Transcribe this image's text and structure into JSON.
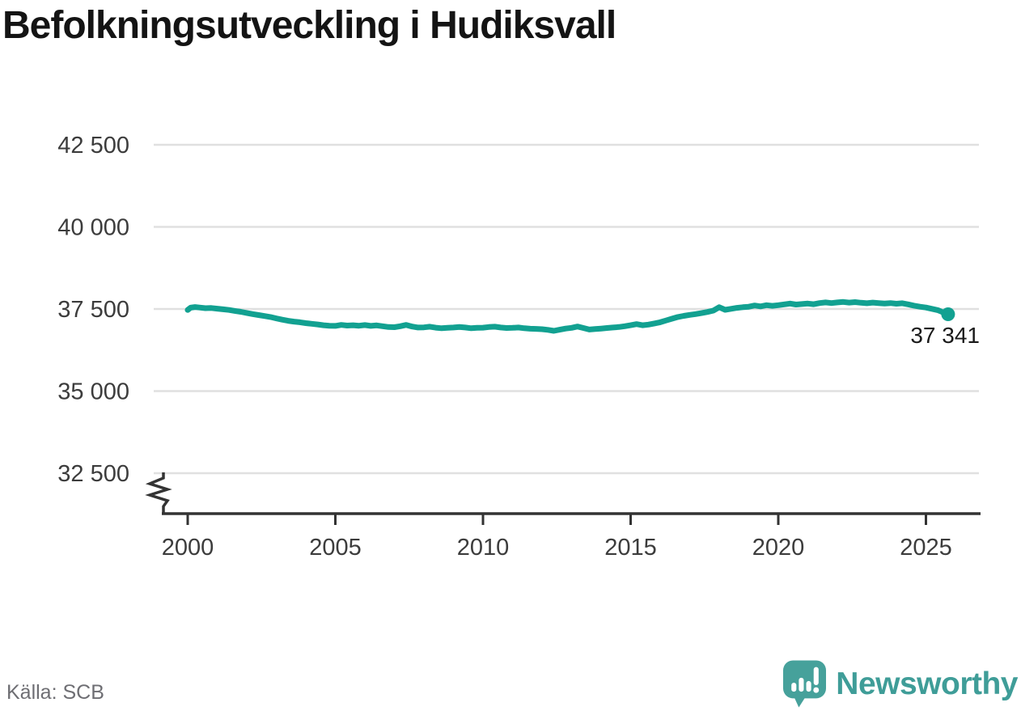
{
  "title": "Befolkningsutveckling i Hudiksvall",
  "source": "Källa: SCB",
  "branding": {
    "name": "Newsworthy"
  },
  "chart_data": {
    "type": "line",
    "title": "Befolkningsutveckling i Hudiksvall",
    "xlabel": "",
    "ylabel": "",
    "grid": "horizontal",
    "axis_break": true,
    "xlim": [
      1999.2,
      2026.8
    ],
    "ylim_displayed": [
      32500,
      42500
    ],
    "x_ticks": [
      {
        "value": 2000,
        "label": "2000"
      },
      {
        "value": 2005,
        "label": "2005"
      },
      {
        "value": 2010,
        "label": "2010"
      },
      {
        "value": 2015,
        "label": "2015"
      },
      {
        "value": 2020,
        "label": "2020"
      },
      {
        "value": 2025,
        "label": "2025"
      }
    ],
    "y_ticks": [
      {
        "value": 42500,
        "label": "42 500"
      },
      {
        "value": 40000,
        "label": "40 000"
      },
      {
        "value": 37500,
        "label": "37 500"
      },
      {
        "value": 35000,
        "label": "35 000"
      },
      {
        "value": 32500,
        "label": "32 500"
      }
    ],
    "end_label": "37 341",
    "end_value": 37341,
    "colors": {
      "line": "#12a191",
      "grid": "#e0e0e0",
      "axis": "#333333"
    },
    "series": [
      {
        "name": "Befolkning",
        "color": "#12a191",
        "points": [
          [
            2000.0,
            37470
          ],
          [
            2000.1,
            37540
          ],
          [
            2000.25,
            37560
          ],
          [
            2000.4,
            37545
          ],
          [
            2000.6,
            37525
          ],
          [
            2000.8,
            37530
          ],
          [
            2001.0,
            37510
          ],
          [
            2001.2,
            37490
          ],
          [
            2001.4,
            37470
          ],
          [
            2001.6,
            37440
          ],
          [
            2001.8,
            37415
          ],
          [
            2002.0,
            37380
          ],
          [
            2002.2,
            37345
          ],
          [
            2002.4,
            37315
          ],
          [
            2002.6,
            37285
          ],
          [
            2002.8,
            37255
          ],
          [
            2003.0,
            37215
          ],
          [
            2003.2,
            37175
          ],
          [
            2003.4,
            37140
          ],
          [
            2003.6,
            37115
          ],
          [
            2003.8,
            37095
          ],
          [
            2004.0,
            37070
          ],
          [
            2004.2,
            37050
          ],
          [
            2004.4,
            37030
          ],
          [
            2004.6,
            37005
          ],
          [
            2004.8,
            36990
          ],
          [
            2005.0,
            36985
          ],
          [
            2005.2,
            37015
          ],
          [
            2005.4,
            36995
          ],
          [
            2005.6,
            37005
          ],
          [
            2005.8,
            36990
          ],
          [
            2006.0,
            37010
          ],
          [
            2006.2,
            36985
          ],
          [
            2006.4,
            37000
          ],
          [
            2006.6,
            36975
          ],
          [
            2006.8,
            36950
          ],
          [
            2007.0,
            36945
          ],
          [
            2007.2,
            36975
          ],
          [
            2007.4,
            37015
          ],
          [
            2007.6,
            36965
          ],
          [
            2007.8,
            36935
          ],
          [
            2008.0,
            36940
          ],
          [
            2008.2,
            36960
          ],
          [
            2008.4,
            36930
          ],
          [
            2008.6,
            36915
          ],
          [
            2008.8,
            36925
          ],
          [
            2009.0,
            36935
          ],
          [
            2009.2,
            36950
          ],
          [
            2009.4,
            36935
          ],
          [
            2009.6,
            36915
          ],
          [
            2009.8,
            36925
          ],
          [
            2010.0,
            36930
          ],
          [
            2010.2,
            36950
          ],
          [
            2010.4,
            36960
          ],
          [
            2010.6,
            36935
          ],
          [
            2010.8,
            36920
          ],
          [
            2011.0,
            36925
          ],
          [
            2011.2,
            36935
          ],
          [
            2011.4,
            36915
          ],
          [
            2011.6,
            36900
          ],
          [
            2011.8,
            36895
          ],
          [
            2012.0,
            36885
          ],
          [
            2012.2,
            36865
          ],
          [
            2012.4,
            36835
          ],
          [
            2012.6,
            36870
          ],
          [
            2012.8,
            36905
          ],
          [
            2013.0,
            36925
          ],
          [
            2013.2,
            36965
          ],
          [
            2013.4,
            36920
          ],
          [
            2013.6,
            36875
          ],
          [
            2013.8,
            36890
          ],
          [
            2014.0,
            36905
          ],
          [
            2014.2,
            36920
          ],
          [
            2014.4,
            36935
          ],
          [
            2014.6,
            36950
          ],
          [
            2014.8,
            36975
          ],
          [
            2015.0,
            37005
          ],
          [
            2015.2,
            37040
          ],
          [
            2015.4,
            37005
          ],
          [
            2015.6,
            37025
          ],
          [
            2015.8,
            37060
          ],
          [
            2016.0,
            37095
          ],
          [
            2016.2,
            37150
          ],
          [
            2016.4,
            37205
          ],
          [
            2016.6,
            37255
          ],
          [
            2016.8,
            37290
          ],
          [
            2017.0,
            37320
          ],
          [
            2017.2,
            37345
          ],
          [
            2017.4,
            37375
          ],
          [
            2017.6,
            37410
          ],
          [
            2017.8,
            37450
          ],
          [
            2018.0,
            37555
          ],
          [
            2018.2,
            37475
          ],
          [
            2018.4,
            37505
          ],
          [
            2018.6,
            37535
          ],
          [
            2018.8,
            37555
          ],
          [
            2019.0,
            37570
          ],
          [
            2019.2,
            37605
          ],
          [
            2019.4,
            37580
          ],
          [
            2019.6,
            37615
          ],
          [
            2019.8,
            37595
          ],
          [
            2020.0,
            37615
          ],
          [
            2020.2,
            37640
          ],
          [
            2020.4,
            37665
          ],
          [
            2020.6,
            37635
          ],
          [
            2020.8,
            37650
          ],
          [
            2021.0,
            37665
          ],
          [
            2021.2,
            37645
          ],
          [
            2021.4,
            37680
          ],
          [
            2021.6,
            37700
          ],
          [
            2021.8,
            37680
          ],
          [
            2022.0,
            37700
          ],
          [
            2022.2,
            37715
          ],
          [
            2022.4,
            37695
          ],
          [
            2022.6,
            37710
          ],
          [
            2022.8,
            37690
          ],
          [
            2023.0,
            37675
          ],
          [
            2023.2,
            37695
          ],
          [
            2023.4,
            37680
          ],
          [
            2023.6,
            37665
          ],
          [
            2023.8,
            37680
          ],
          [
            2024.0,
            37660
          ],
          [
            2024.2,
            37675
          ],
          [
            2024.4,
            37640
          ],
          [
            2024.6,
            37600
          ],
          [
            2024.8,
            37570
          ],
          [
            2025.0,
            37545
          ],
          [
            2025.2,
            37505
          ],
          [
            2025.4,
            37465
          ],
          [
            2025.55,
            37410
          ],
          [
            2025.65,
            37350
          ],
          [
            2025.75,
            37341
          ]
        ]
      }
    ]
  }
}
